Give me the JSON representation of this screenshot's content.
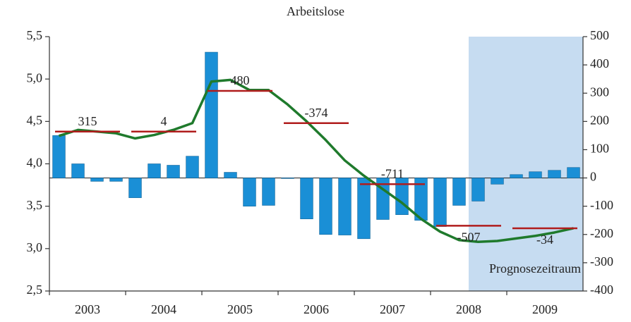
{
  "chart_data": {
    "type": "bar-line",
    "title": "Arbeitslose",
    "categories": [
      "2003",
      "2004",
      "2005",
      "2006",
      "2007",
      "2008",
      "2009"
    ],
    "xlim": [
      2003,
      2010
    ],
    "bars": {
      "color": "#1a8fd6",
      "axis": "y2",
      "values": [
        150,
        50,
        -12,
        -12,
        -70,
        50,
        45,
        77,
        445,
        20,
        -100,
        -97,
        -2,
        -145,
        -200,
        -202,
        -215,
        -147,
        -130,
        -150,
        -172,
        -97,
        -82,
        -22,
        12,
        22,
        27,
        37
      ]
    },
    "line": {
      "color": "#1f7a2c",
      "axis": "y",
      "values": [
        4.33,
        4.4,
        4.38,
        4.36,
        4.3,
        4.34,
        4.4,
        4.48,
        4.97,
        4.99,
        4.87,
        4.87,
        4.7,
        4.5,
        4.28,
        4.04,
        3.86,
        3.7,
        3.54,
        3.35,
        3.2,
        3.1,
        3.08,
        3.09,
        3.12,
        3.15,
        3.19,
        3.24
      ]
    },
    "annual_means": {
      "color": "#b01c1c",
      "axis": "y",
      "values": [
        4.38,
        4.38,
        4.86,
        4.48,
        3.76,
        3.27,
        3.24
      ]
    },
    "annotations": [
      315,
      4,
      480,
      -374,
      -711,
      -507,
      -34
    ],
    "shade": {
      "label": "Prognosezeitraum",
      "from": 2008.5,
      "to": 2010,
      "color": "#c6dcf1"
    },
    "ylim": [
      2.5,
      5.5
    ],
    "yticks": [
      {
        "value": 2.5,
        "label": "2,5"
      },
      {
        "value": 3.0,
        "label": "3,0"
      },
      {
        "value": 3.5,
        "label": "3,5"
      },
      {
        "value": 4.0,
        "label": "4,0"
      },
      {
        "value": 4.5,
        "label": "4,5"
      },
      {
        "value": 5.0,
        "label": "5,0"
      },
      {
        "value": 5.5,
        "label": "5,5"
      }
    ],
    "y2lim": [
      -400,
      500
    ],
    "y2ticks": [
      -400,
      -300,
      -200,
      -100,
      0,
      100,
      200,
      300,
      400,
      500
    ]
  }
}
